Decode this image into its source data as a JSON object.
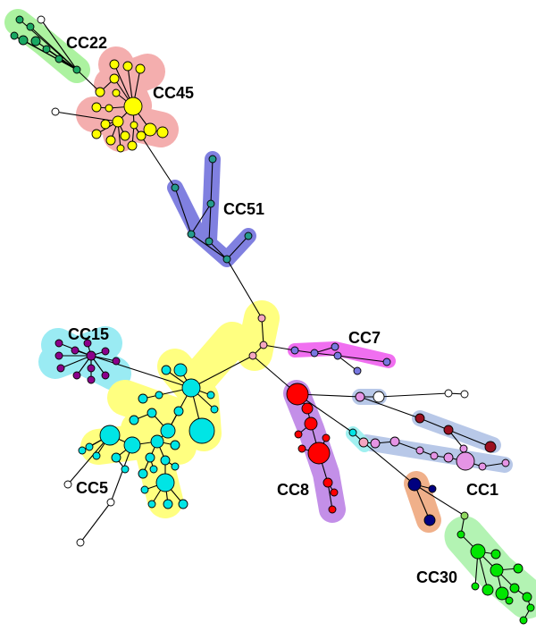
{
  "figure": {
    "clusters": [
      {
        "id": "cc22",
        "label": "CC22",
        "node_color": "#1aa862",
        "halo_color": "#9ef08f"
      },
      {
        "id": "cc45",
        "label": "CC45",
        "node_color": "#ffff00",
        "halo_color": "#f2a0a0"
      },
      {
        "id": "cc51",
        "label": "CC51",
        "node_color": "#259b8c",
        "halo_color": "#8080e0"
      },
      {
        "id": "cc15",
        "label": "CC15",
        "node_color": "#8b008b",
        "halo_color": "#8fe9f2"
      },
      {
        "id": "cc7",
        "label": "CC7",
        "node_color": "#7878e0",
        "halo_color": "#f06ff0"
      },
      {
        "id": "cc5",
        "label": "CC5",
        "node_color": "#00e5e5",
        "halo_color": "#ffff80"
      },
      {
        "id": "cc8",
        "label": "CC8",
        "node_color": "#ff0000",
        "halo_color": "#c38fe8"
      },
      {
        "id": "cc1",
        "label": "CC1",
        "node_color": "#e594e5",
        "halo_color": "#b8c8e8"
      },
      {
        "id": "cc30",
        "label": "CC30",
        "node_color": "#00e600",
        "halo_color": "#a0f0a0"
      }
    ]
  }
}
